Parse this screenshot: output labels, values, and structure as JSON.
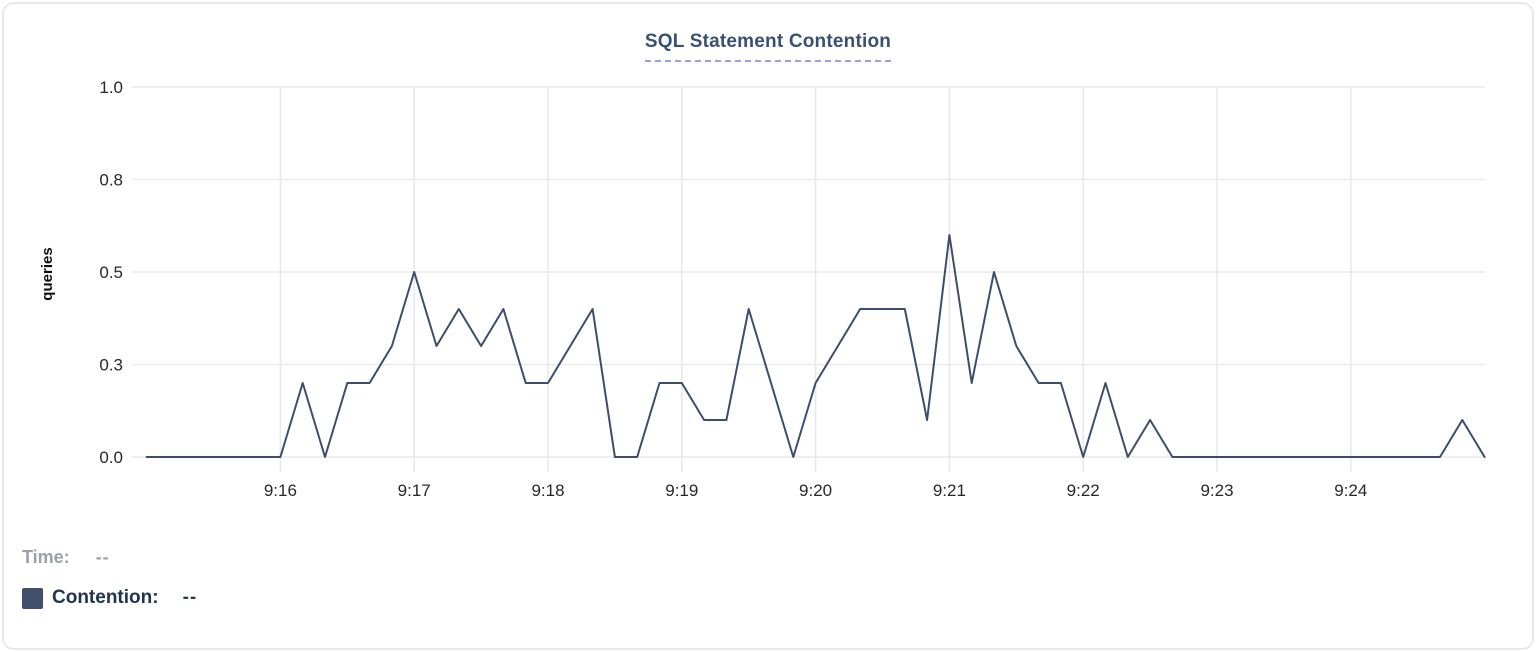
{
  "panel": {
    "title": "SQL Statement Contention"
  },
  "chart_data": {
    "type": "line",
    "title": "SQL Statement Contention",
    "xlabel": "",
    "ylabel": "queries",
    "series_name": "Contention",
    "grid": true,
    "ylim": [
      0,
      1
    ],
    "x_start": "9:15:00",
    "x_end": "9:25:00",
    "interval_seconds": 10,
    "y_ticks": [
      {
        "label": "1.0",
        "value": 1.0
      },
      {
        "label": "0.8",
        "value": 0.75
      },
      {
        "label": "0.5",
        "value": 0.5
      },
      {
        "label": "0.3",
        "value": 0.25
      },
      {
        "label": "0.0",
        "value": 0.0
      }
    ],
    "x_ticks": [
      {
        "label": "9:16",
        "minute_offset": 1
      },
      {
        "label": "9:17",
        "minute_offset": 2
      },
      {
        "label": "9:18",
        "minute_offset": 3
      },
      {
        "label": "9:19",
        "minute_offset": 4
      },
      {
        "label": "9:20",
        "minute_offset": 5
      },
      {
        "label": "9:21",
        "minute_offset": 6
      },
      {
        "label": "9:22",
        "minute_offset": 7
      },
      {
        "label": "9:23",
        "minute_offset": 8
      },
      {
        "label": "9:24",
        "minute_offset": 9
      }
    ],
    "x": [
      "9:15:00",
      "9:15:10",
      "9:15:20",
      "9:15:30",
      "9:15:40",
      "9:15:50",
      "9:16:00",
      "9:16:10",
      "9:16:20",
      "9:16:30",
      "9:16:40",
      "9:16:50",
      "9:17:00",
      "9:17:10",
      "9:17:20",
      "9:17:30",
      "9:17:40",
      "9:17:50",
      "9:18:00",
      "9:18:10",
      "9:18:20",
      "9:18:30",
      "9:18:40",
      "9:18:50",
      "9:19:00",
      "9:19:10",
      "9:19:20",
      "9:19:30",
      "9:19:40",
      "9:19:50",
      "9:20:00",
      "9:20:10",
      "9:20:20",
      "9:20:30",
      "9:20:40",
      "9:20:50",
      "9:21:00",
      "9:21:10",
      "9:21:20",
      "9:21:30",
      "9:21:40",
      "9:21:50",
      "9:22:00",
      "9:22:10",
      "9:22:20",
      "9:22:30",
      "9:22:40",
      "9:22:50",
      "9:23:00",
      "9:23:10",
      "9:23:20",
      "9:23:30",
      "9:23:40",
      "9:23:50",
      "9:24:00",
      "9:24:10",
      "9:24:20",
      "9:24:30",
      "9:24:40",
      "9:24:50",
      "9:25:00"
    ],
    "values": [
      0,
      0,
      0,
      0,
      0,
      0,
      0,
      0.2,
      0,
      0.2,
      0.2,
      0.3,
      0.5,
      0.3,
      0.4,
      0.3,
      0.4,
      0.2,
      0.2,
      0.3,
      0.4,
      0,
      0,
      0.2,
      0.2,
      0.1,
      0.1,
      0.4,
      0.2,
      0,
      0.2,
      0.3,
      0.4,
      0.4,
      0.4,
      0.1,
      0.6,
      0.2,
      0.5,
      0.3,
      0.2,
      0.2,
      0,
      0.2,
      0,
      0.1,
      0,
      0,
      0,
      0,
      0,
      0,
      0,
      0,
      0,
      0,
      0,
      0,
      0,
      0.1,
      0
    ],
    "legend_position": "bottom-left"
  },
  "legend": {
    "time_label": "Time:",
    "time_value": "--",
    "series_label": "Contention:",
    "series_value": "--"
  },
  "colors": {
    "line": "#3d4e6c",
    "swatch": "#41506b",
    "grid": "#e9e9eb",
    "tick_label": "#26282c",
    "title_text": "#385173",
    "title_underline": "#97a2da",
    "time_label": "#9aa1ab",
    "time_value": "#9aa1ab",
    "series_label": "#22334f",
    "series_value": "#2b3c5c"
  }
}
